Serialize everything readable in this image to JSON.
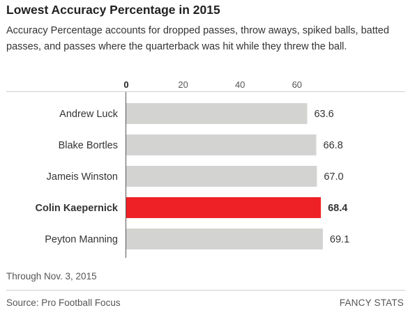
{
  "title": "Lowest Accuracy Percentage in 2015",
  "subtitle": "Accuracy Percentage accounts for dropped passes, throw aways, spiked balls, batted passes, and passes where the quarterback was hit while they threw the ball.",
  "footnote": "Through Nov. 3, 2015",
  "source": "Source: Pro Football Focus",
  "brand": "FANCY STATS",
  "colors": {
    "bar": "#d3d3d1",
    "highlight": "#ee2127",
    "axis": "#555555",
    "rule": "#cfcfcf"
  },
  "chart_data": {
    "type": "bar",
    "orientation": "horizontal",
    "categories": [
      "Andrew Luck",
      "Blake Bortles",
      "Jameis Winston",
      "Colin Kaepernick",
      "Peyton Manning"
    ],
    "values": [
      63.6,
      66.8,
      67.0,
      68.4,
      69.1
    ],
    "value_labels": [
      "63.6",
      "66.8",
      "67.0",
      "68.4",
      "69.1"
    ],
    "highlight": "Colin Kaepernick",
    "xticks": [
      0,
      20,
      40,
      60
    ],
    "xtick_labels": [
      "0",
      "20",
      "40",
      "60"
    ],
    "xlim": [
      0,
      70
    ],
    "title": "Lowest Accuracy Percentage in 2015",
    "xlabel": "",
    "ylabel": "",
    "grid": false,
    "legend": "none"
  }
}
